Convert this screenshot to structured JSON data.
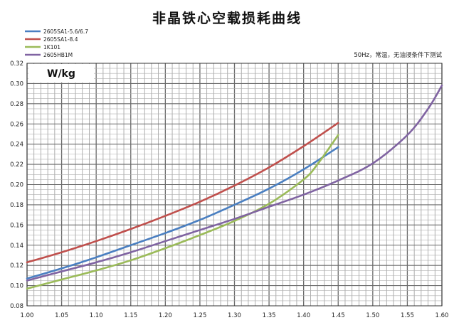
{
  "chart_data": {
    "type": "line",
    "title": "非晶铁心空载损耗曲线",
    "note": "50Hz，常温，无油浸条件下测试",
    "unit_label": "W/kg",
    "xlim": [
      1.0,
      1.6
    ],
    "ylim": [
      0.08,
      0.32
    ],
    "x_ticks": [
      "1.00",
      "1.05",
      "1.10",
      "1.15",
      "1.20",
      "1.25",
      "1.30",
      "1.35",
      "1.40",
      "1.45",
      "1.50",
      "1.55",
      "1.60"
    ],
    "y_ticks": [
      "0.08",
      "0.10",
      "0.12",
      "0.14",
      "0.16",
      "0.18",
      "0.20",
      "0.22",
      "0.24",
      "0.26",
      "0.28",
      "0.30",
      "0.32"
    ],
    "grid": true,
    "legend_position": "top-left",
    "series": [
      {
        "name": "2605SA1-5.6/6.7",
        "color": "#4a7fc1",
        "x": [
          1.0,
          1.05,
          1.1,
          1.15,
          1.2,
          1.25,
          1.3,
          1.35,
          1.4,
          1.45
        ],
        "y": [
          0.107,
          0.117,
          0.128,
          0.14,
          0.152,
          0.165,
          0.18,
          0.196,
          0.215,
          0.237
        ]
      },
      {
        "name": "2605SA1-8.4",
        "color": "#c0504d",
        "x": [
          1.0,
          1.05,
          1.1,
          1.15,
          1.2,
          1.25,
          1.3,
          1.35,
          1.4,
          1.45
        ],
        "y": [
          0.123,
          0.133,
          0.144,
          0.156,
          0.169,
          0.183,
          0.199,
          0.217,
          0.238,
          0.261
        ]
      },
      {
        "name": "1K101",
        "color": "#9bbb59",
        "x": [
          1.0,
          1.05,
          1.1,
          1.15,
          1.2,
          1.25,
          1.3,
          1.35,
          1.4,
          1.42,
          1.45
        ],
        "y": [
          0.097,
          0.106,
          0.115,
          0.125,
          0.137,
          0.15,
          0.164,
          0.181,
          0.205,
          0.22,
          0.249
        ]
      },
      {
        "name": "2605HB1M",
        "color": "#8064a2",
        "x": [
          1.0,
          1.05,
          1.1,
          1.15,
          1.2,
          1.25,
          1.3,
          1.35,
          1.4,
          1.45,
          1.5,
          1.55,
          1.58,
          1.6
        ],
        "y": [
          0.105,
          0.114,
          0.123,
          0.133,
          0.144,
          0.155,
          0.166,
          0.178,
          0.19,
          0.204,
          0.221,
          0.249,
          0.275,
          0.298
        ]
      }
    ]
  }
}
